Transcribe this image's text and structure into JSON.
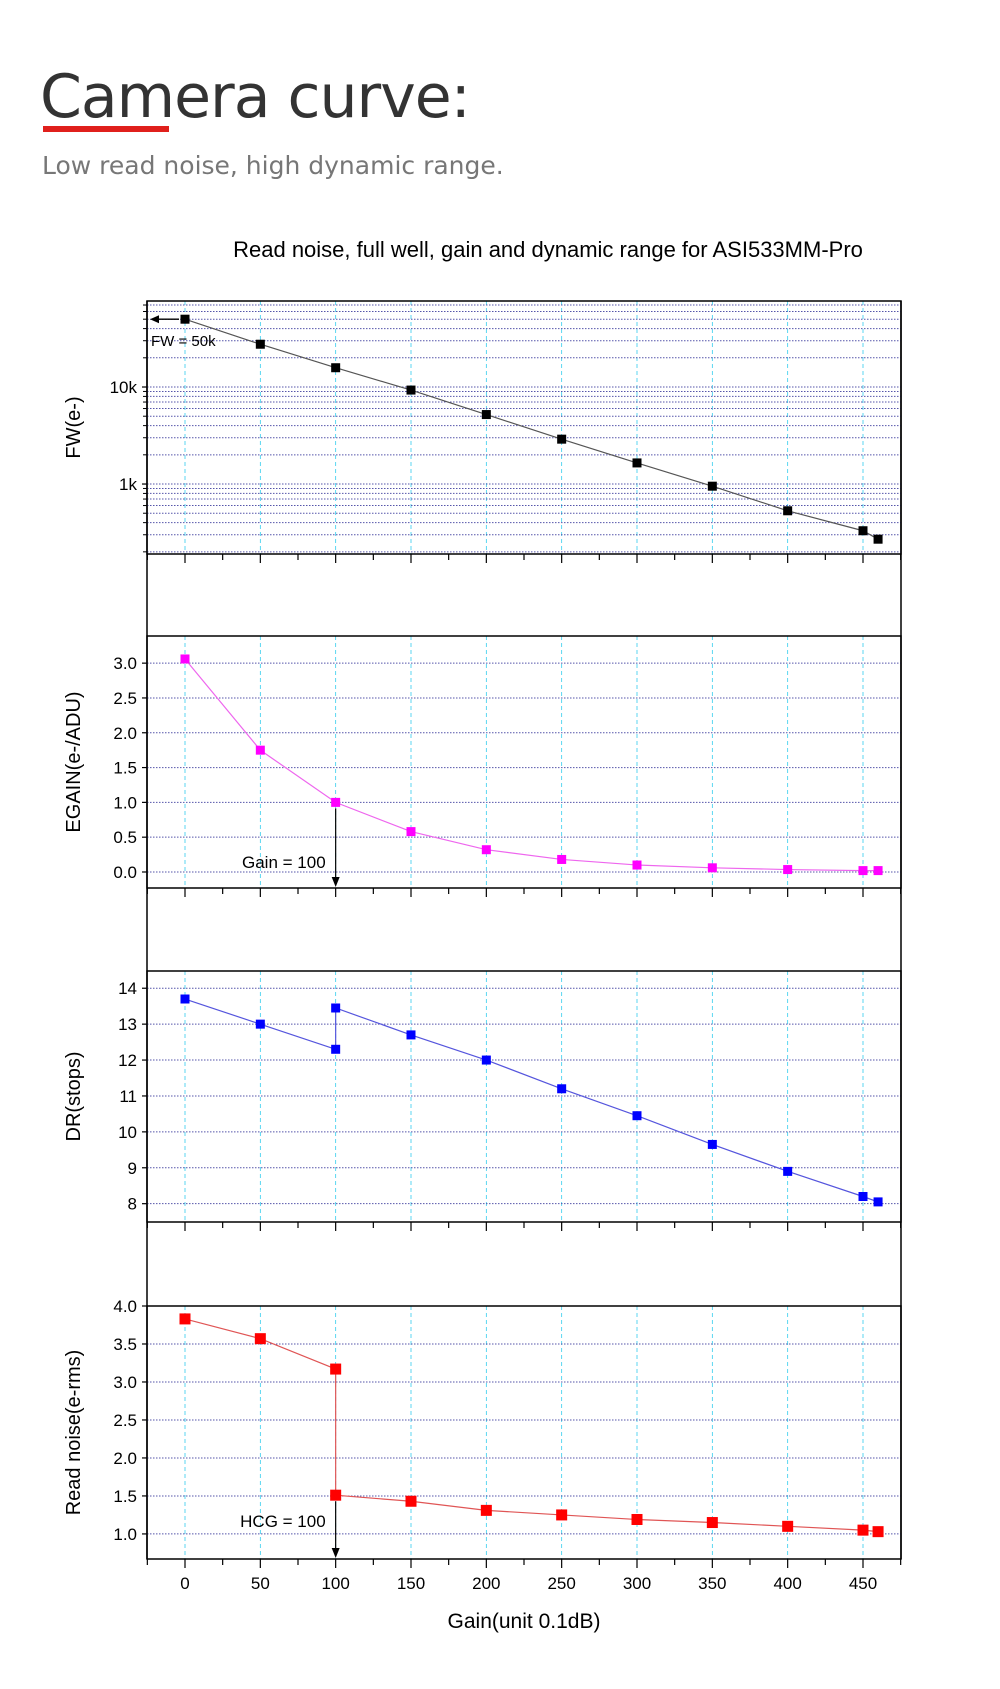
{
  "header": {
    "title": "Camera curve:",
    "subtitle": "Low read noise, high dynamic range.",
    "accent_color": "#e0201c"
  },
  "chart_data": {
    "type": "line",
    "title": "Read noise, full well, gain and dynamic range for ASI533MM-Pro",
    "xlabel": "Gain(unit 0.1dB)",
    "xlim": [
      -25,
      475
    ],
    "xticks": [
      0,
      50,
      100,
      150,
      200,
      250,
      300,
      350,
      400,
      450
    ],
    "grid": true,
    "panels": [
      {
        "name": "fw",
        "ylabel": "FW(e-)",
        "scale": "log",
        "ylim": [
          190,
          77000
        ],
        "yticks": [
          {
            "v": 10000,
            "label": "10k"
          },
          {
            "v": 1000,
            "label": "1k"
          }
        ],
        "color": "#000000",
        "line_color": "#555555",
        "x": [
          0,
          50,
          100,
          150,
          200,
          250,
          300,
          350,
          400,
          450,
          460
        ],
        "y": [
          50000,
          27600,
          15800,
          9300,
          5200,
          2900,
          1650,
          950,
          530,
          330,
          270
        ],
        "annotation": {
          "text": "FW = 50k",
          "type": "arrow-left",
          "x": 0,
          "y": 50000
        }
      },
      {
        "name": "egain",
        "ylabel": "EGAIN(e-/ADU)",
        "scale": "linear",
        "ylim": [
          -0.23,
          3.39
        ],
        "yticks": [
          {
            "v": 3.0,
            "label": "3.0"
          },
          {
            "v": 2.5,
            "label": "2.5"
          },
          {
            "v": 2.0,
            "label": "2.0"
          },
          {
            "v": 1.5,
            "label": "1.5"
          },
          {
            "v": 1.0,
            "label": "1.0"
          },
          {
            "v": 0.5,
            "label": "0.5"
          },
          {
            "v": 0.0,
            "label": "0.0"
          }
        ],
        "color": "#ff00ff",
        "line_color": "#ee66ee",
        "x": [
          0,
          50,
          100,
          150,
          200,
          250,
          300,
          350,
          400,
          450,
          460
        ],
        "y": [
          3.06,
          1.75,
          1.0,
          0.58,
          0.32,
          0.18,
          0.1,
          0.06,
          0.035,
          0.02,
          0.02
        ],
        "annotation": {
          "text": "Gain = 100",
          "type": "arrow-down",
          "x": 100,
          "y": 1.0
        }
      },
      {
        "name": "dr",
        "ylabel": "DR(stops)",
        "scale": "linear",
        "ylim": [
          7.49,
          14.48
        ],
        "yticks": [
          {
            "v": 14,
            "label": "14"
          },
          {
            "v": 13,
            "label": "13"
          },
          {
            "v": 12,
            "label": "12"
          },
          {
            "v": 11,
            "label": "11"
          },
          {
            "v": 10,
            "label": "10"
          },
          {
            "v": 9,
            "label": "9"
          },
          {
            "v": 8,
            "label": "8"
          }
        ],
        "color": "#0000ff",
        "line_color": "#5555dd",
        "x": [
          0,
          50,
          100,
          100,
          150,
          200,
          250,
          300,
          350,
          400,
          450,
          460
        ],
        "y": [
          13.7,
          13.0,
          12.3,
          13.45,
          12.7,
          12.0,
          11.2,
          10.45,
          9.65,
          8.9,
          8.2,
          8.05
        ]
      },
      {
        "name": "read-noise",
        "ylabel": "Read noise(e-rms)",
        "scale": "linear",
        "ylim": [
          0.67,
          4.0
        ],
        "yticks": [
          {
            "v": 4.0,
            "label": "4.0"
          },
          {
            "v": 3.5,
            "label": "3.5"
          },
          {
            "v": 3.0,
            "label": "3.0"
          },
          {
            "v": 2.5,
            "label": "2.5"
          },
          {
            "v": 2.0,
            "label": "2.0"
          },
          {
            "v": 1.5,
            "label": "1.5"
          },
          {
            "v": 1.0,
            "label": "1.0"
          }
        ],
        "color": "#ff0000",
        "line_color": "#e05555",
        "x": [
          0,
          50,
          100,
          100,
          150,
          200,
          250,
          300,
          350,
          400,
          450,
          460
        ],
        "y": [
          3.83,
          3.57,
          3.17,
          1.51,
          1.43,
          1.31,
          1.25,
          1.19,
          1.15,
          1.1,
          1.05,
          1.03
        ],
        "annotation": {
          "text": "HCG = 100",
          "type": "arrow-down",
          "x": 100,
          "y": 1.51
        }
      }
    ]
  }
}
